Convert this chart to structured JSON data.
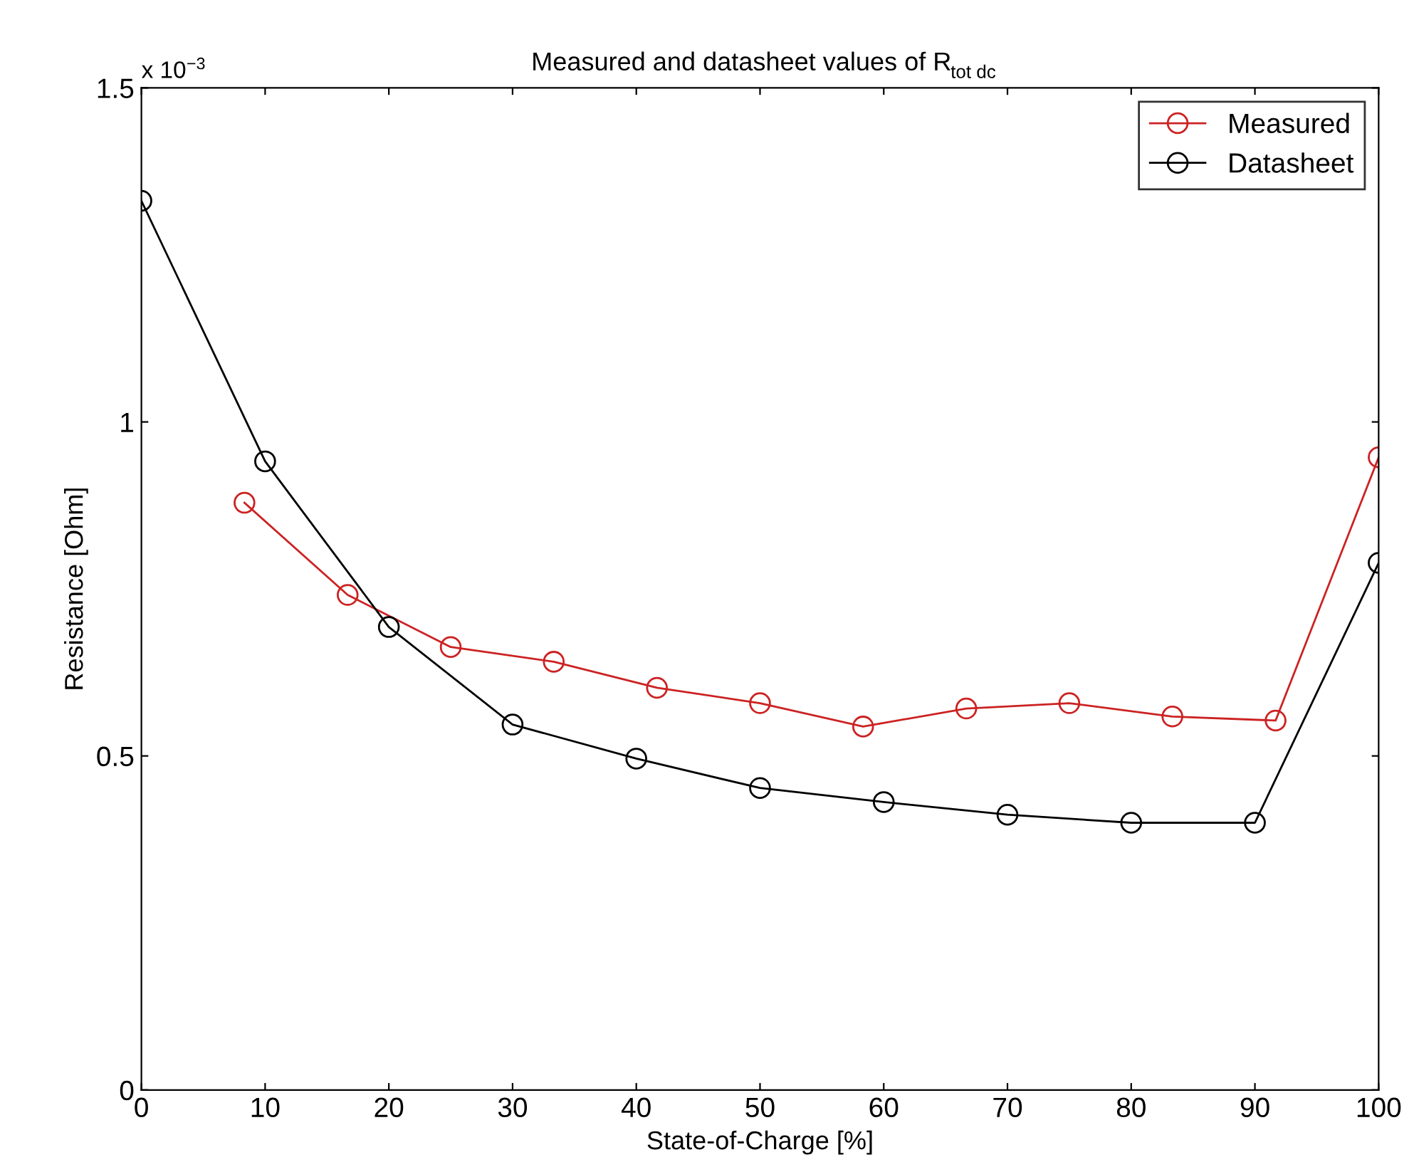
{
  "chart_data": {
    "type": "line",
    "title": "Measured and datasheet values of R$_{tot dc}$",
    "xlabel": "State-of-Charge [%]",
    "ylabel": "Resistance [Ohm]",
    "annotations": [
      "x 10$^{−3}$"
    ],
    "series": [
      {
        "name": "Measured",
        "color": "#cc2222",
        "x": [
          8.33,
          16.67,
          25,
          33.33,
          41.67,
          50,
          58.33,
          66.67,
          75,
          83.33,
          91.67,
          100
        ],
        "values": [
          0.879,
          0.741,
          0.663,
          0.641,
          0.602,
          0.579,
          0.544,
          0.571,
          0.579,
          0.559,
          0.553,
          0.947
        ]
      },
      {
        "name": "Datasheet",
        "color": "#000000",
        "x": [
          0,
          10,
          20,
          30,
          40,
          50,
          60,
          70,
          80,
          90,
          100
        ],
        "values": [
          1.331,
          0.941,
          0.693,
          0.547,
          0.496,
          0.452,
          0.431,
          0.412,
          0.4,
          0.4,
          0.789
        ]
      }
    ],
    "xlim": [
      0,
      100
    ],
    "ylim": [
      0,
      1.5
    ],
    "xticks": [
      0,
      10,
      20,
      30,
      40,
      50,
      60,
      70,
      80,
      90,
      100
    ],
    "yticks": [
      0,
      0.5,
      1,
      1.5
    ],
    "grid": false,
    "legend": "top right",
    "marker": "circle",
    "line_style": "solid"
  }
}
